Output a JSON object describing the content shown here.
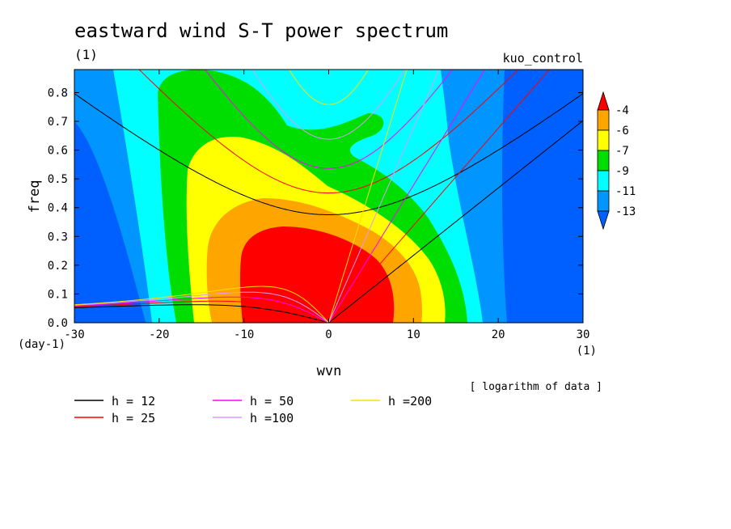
{
  "chart_data": {
    "type": "heatmap",
    "title": "eastward wind S-T power spectrum",
    "subtitle": "(1)",
    "run_label": "kuo_control",
    "xlabel": "wvn",
    "x_unit": "(1)",
    "ylabel": "freq",
    "y_unit": "(day-1)",
    "xlim": [
      -30,
      30
    ],
    "ylim": [
      0,
      0.88
    ],
    "x_ticks": [
      -30,
      -20,
      -10,
      0,
      10,
      20,
      30
    ],
    "x_tick_labels": [
      "-30",
      "-20",
      "-10",
      "0",
      "10",
      "20",
      "30"
    ],
    "y_ticks": [
      0,
      0.1,
      0.2,
      0.3,
      0.4,
      0.5,
      0.6,
      0.7,
      0.8
    ],
    "y_tick_labels": [
      "0.0",
      "0.1",
      "0.2",
      "0.3",
      "0.4",
      "0.5",
      "0.6",
      "0.7",
      "0.8"
    ],
    "note": "[ logarithm of data ]",
    "colorbar": {
      "levels": [
        -4,
        -6,
        -7,
        -9,
        -11,
        -13
      ],
      "level_labels": [
        "-4",
        "-6",
        "-7",
        "-9",
        "-11",
        "-13"
      ],
      "colors": [
        "#ff0000",
        "#ffa500",
        "#ffff00",
        "#00dd00",
        "#00ffff",
        "#0095ff",
        "#0060ff"
      ]
    },
    "field_colors": {
      "below_-13": "#0060ff",
      "-13_to_-11": "#0095ff",
      "-11_to_-9": "#00ffff",
      "-9_to_-7": "#00dd00",
      "-7_to_-6": "#ffff00",
      "-6_to_-4": "#ffa500",
      "above_-4": "#ff0000"
    },
    "dispersion_curves": {
      "equivalent_depths": [
        12,
        25,
        50,
        100,
        200
      ],
      "legend_labels": [
        "h = 12",
        "h = 25",
        "h = 50",
        "h =100",
        "h =200"
      ],
      "colors": [
        "#000000",
        "#ff0000",
        "#ff00ff",
        "#dd99ff",
        "#ffdd00"
      ],
      "families": [
        "kelvin",
        "rossby_n1",
        "inertia_gravity_n1"
      ]
    }
  }
}
